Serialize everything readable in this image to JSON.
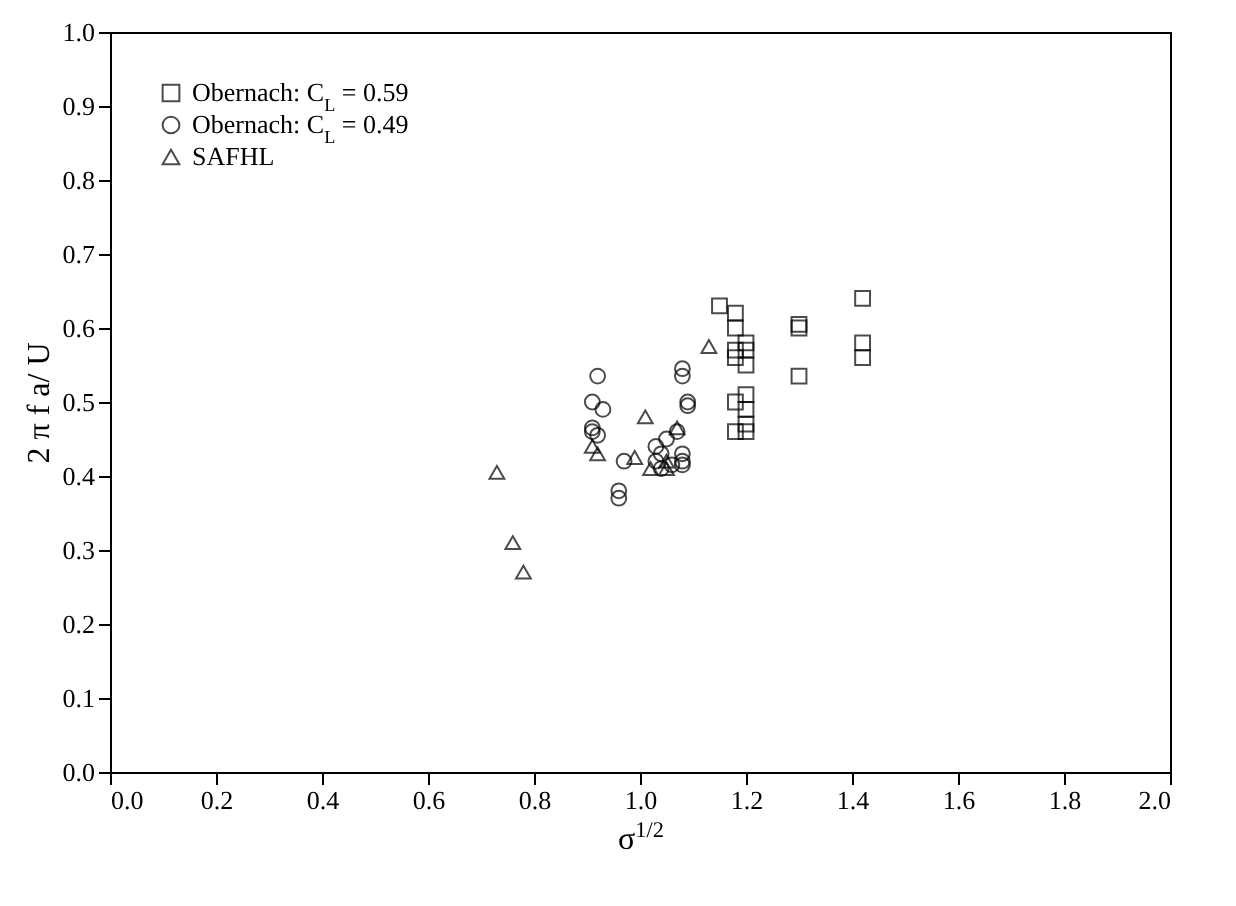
{
  "chart_data": {
    "type": "scatter",
    "xlabel": "σ$^{1/2}$",
    "ylabel": "2 π f a/ U",
    "xlim": [
      0,
      2
    ],
    "ylim": [
      0,
      1
    ],
    "xticks": [
      {
        "value": 0,
        "label": "0.0"
      },
      0.2,
      0.4,
      0.6,
      0.8,
      {
        "value": 1,
        "label": "1.0"
      },
      1.2,
      1.4,
      1.6,
      1.8,
      {
        "value": 2,
        "label": "2.0"
      }
    ],
    "yticks": [
      {
        "value": 0,
        "label": "0.0"
      },
      0.1,
      0.2,
      0.3,
      0.4,
      0.5,
      0.6,
      0.7,
      0.8,
      0.9,
      {
        "value": 1,
        "label": "1.0"
      }
    ],
    "legend": "top left",
    "grid": false,
    "series": [
      {
        "name": "Obernach: C$_{L}$ = 0.59",
        "color": "#000000",
        "marker": "square",
        "x": [
          1.15,
          1.18,
          1.18,
          1.18,
          1.18,
          1.18,
          1.18,
          1.2,
          1.2,
          1.2,
          1.2,
          1.2,
          1.2,
          1.2,
          1.3,
          1.3,
          1.3,
          1.42,
          1.42,
          1.42
        ],
        "values": [
          0.63,
          0.62,
          0.6,
          0.57,
          0.56,
          0.5,
          0.46,
          0.58,
          0.57,
          0.55,
          0.51,
          0.49,
          0.47,
          0.46,
          0.605,
          0.6,
          0.535,
          0.64,
          0.58,
          0.56
        ]
      },
      {
        "name": "Obernach: C$_{L}$ = 0.49",
        "color": "#000000",
        "marker": "circle",
        "x": [
          0.92,
          0.91,
          0.91,
          0.91,
          0.92,
          0.93,
          0.96,
          0.96,
          0.97,
          1.03,
          1.03,
          1.04,
          1.04,
          1.05,
          1.07,
          1.08,
          1.08,
          1.09,
          1.09,
          1.08,
          1.08,
          1.08,
          1.06
        ],
        "values": [
          0.535,
          0.5,
          0.465,
          0.46,
          0.455,
          0.49,
          0.38,
          0.37,
          0.42,
          0.44,
          0.42,
          0.41,
          0.43,
          0.45,
          0.46,
          0.545,
          0.535,
          0.5,
          0.495,
          0.43,
          0.42,
          0.415,
          0.415
        ]
      },
      {
        "name": "SAFHL",
        "color": "#000000",
        "marker": "triangle",
        "x": [
          0.73,
          0.76,
          0.78,
          0.91,
          0.92,
          0.99,
          1.01,
          1.02,
          1.05,
          1.05,
          1.13,
          1.07
        ],
        "values": [
          0.405,
          0.31,
          0.27,
          0.44,
          0.43,
          0.425,
          0.48,
          0.41,
          0.42,
          0.41,
          0.575,
          0.465
        ]
      }
    ]
  }
}
